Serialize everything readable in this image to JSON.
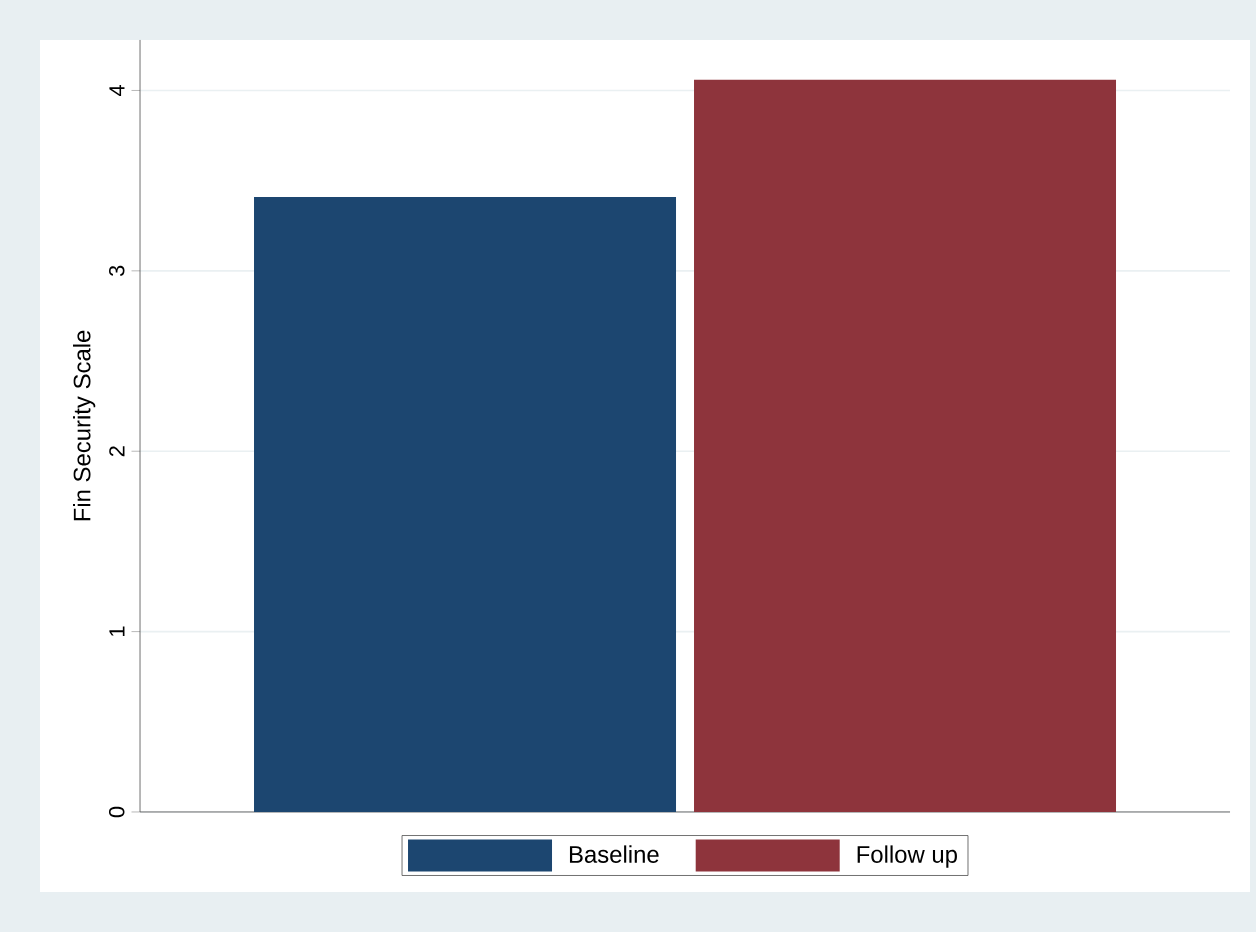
{
  "chart_data": {
    "type": "bar",
    "categories": [
      null
    ],
    "ylabel": "Fin Security Scale",
    "ylim": [
      0,
      4.28
    ],
    "yticks": [
      0,
      1,
      2,
      3,
      4
    ],
    "grid": "y",
    "legend": "bottom",
    "series": [
      {
        "name": "Baseline",
        "color": "#1c4670",
        "values": [
          3.41
        ]
      },
      {
        "name": "Follow up",
        "color": "#8e343c",
        "values": [
          4.06
        ]
      }
    ]
  }
}
